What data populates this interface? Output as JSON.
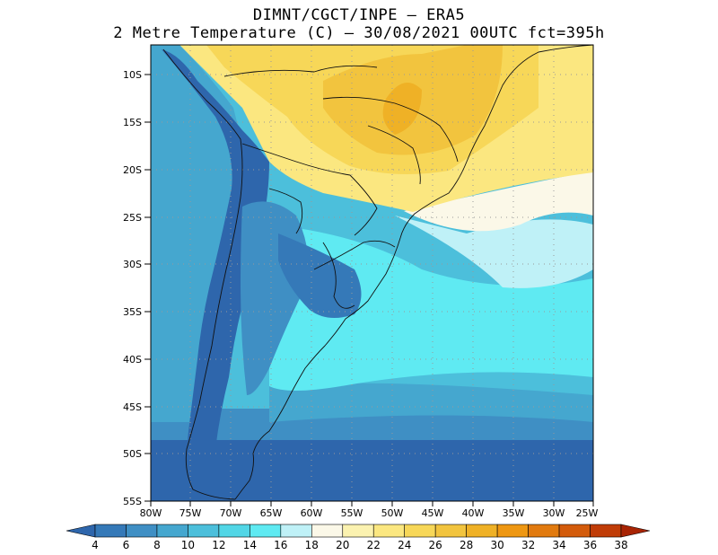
{
  "title": {
    "line1": "DIMNT/CGCT/INPE –  ERA5",
    "line2": "2 Metre Temperature (C) –  30/08/2021 00UTC fct=395h"
  },
  "map": {
    "region": "South America",
    "lon_range": [
      -80,
      -25
    ],
    "lat_range": [
      -55,
      -7
    ],
    "lat_ticks": [
      "10S",
      "15S",
      "20S",
      "25S",
      "30S",
      "35S",
      "40S",
      "45S",
      "50S",
      "55S"
    ],
    "lon_ticks": [
      "80W",
      "75W",
      "70W",
      "65W",
      "60W",
      "55W",
      "50W",
      "45W",
      "40W",
      "35W",
      "30W",
      "25W"
    ]
  },
  "colorbar": {
    "labels": [
      "4",
      "6",
      "8",
      "10",
      "12",
      "14",
      "16",
      "18",
      "20",
      "22",
      "24",
      "26",
      "28",
      "30",
      "32",
      "34",
      "36",
      "38"
    ],
    "colors": [
      "#2e66ac",
      "#3579b8",
      "#3f8fc4",
      "#45a7cf",
      "#4cbfdb",
      "#52d6e6",
      "#5feaf2",
      "#bff1f7",
      "#fbf8e8",
      "#fbf2b0",
      "#fbe780",
      "#f7d758",
      "#f2c43e",
      "#efb126",
      "#ee9712",
      "#e17a0f",
      "#d35b0b",
      "#c03c07",
      "#a82404"
    ]
  },
  "palette": {
    "deep_blue": "#2e66ac",
    "mid_blue": "#3f8fc4",
    "light_blue": "#4cbfdb",
    "cyan": "#5feaf2",
    "pale": "#fbf8e8",
    "yellow": "#fbe780",
    "gold": "#f2c43e",
    "dark_gold": "#efb126"
  }
}
